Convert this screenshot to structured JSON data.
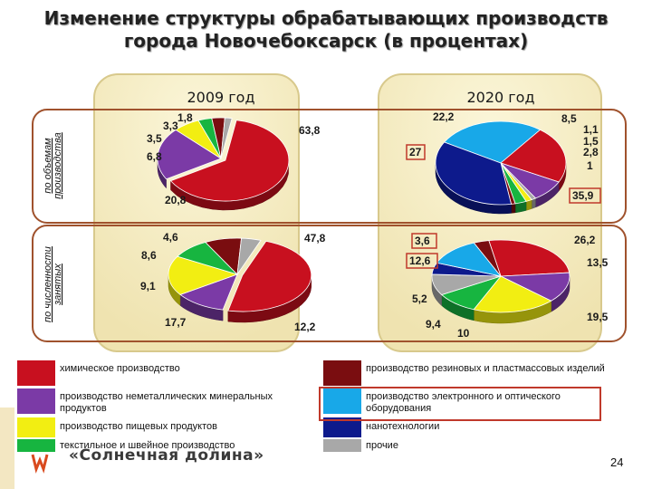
{
  "title_line1": "Изменение структуры обрабатывающих производств",
  "title_line2": "города Новочебоксарск (в процентах)",
  "chart_data": [
    {
      "type": "pie",
      "title": "2009 год",
      "row_label": "по объемам производства",
      "categories": [
        "химическое производство",
        "производство неметаллических минеральных продуктов",
        "производство пищевых продуктов",
        "текстильное и швейное производство",
        "производство резиновых и пластмассовых изделий",
        "прочие"
      ],
      "values": [
        63.8,
        20.8,
        6.8,
        3.5,
        3.3,
        1.8
      ],
      "labels": [
        "63,8",
        "20,8",
        "6,8",
        "3,5",
        "3,3",
        "1,8"
      ]
    },
    {
      "type": "pie",
      "title": "2020 год",
      "row_label": "по объемам производства",
      "categories": [
        "производство электронного и оптического оборудования",
        "химическое производство",
        "производство неметаллических минеральных продуктов",
        "прочие",
        "производство пищевых продуктов",
        "текстильное и швейное производство",
        "производство резиновых и пластмассовых изделий",
        "нанотехнологии"
      ],
      "values": [
        27,
        22.2,
        8.5,
        1.1,
        1.5,
        2.8,
        1,
        35.9
      ],
      "labels": [
        "27",
        "22,2",
        "8,5",
        "1,1",
        "1,5",
        "2,8",
        "1",
        "35,9"
      ]
    },
    {
      "type": "pie",
      "title": "2009 год",
      "row_label": "по численности занятых",
      "categories": [
        "химическое производство",
        "производство неметаллических минеральных продуктов",
        "производство пищевых продуктов",
        "текстильное и швейное производство",
        "производство резиновых и пластмассовых изделий",
        "прочие"
      ],
      "values": [
        47.8,
        12.2,
        17.7,
        9.1,
        8.6,
        4.6
      ],
      "labels": [
        "47,8",
        "12,2",
        "17,7",
        "9,1",
        "8,6",
        "4,6"
      ]
    },
    {
      "type": "pie",
      "title": "2020 год",
      "row_label": "по численности занятых",
      "categories": [
        "химическое производство",
        "производство неметаллических минеральных продуктов",
        "производство пищевых продуктов",
        "текстильное и швейное производство",
        "прочие",
        "нанотехнологии",
        "производство электронного и оптического оборудования",
        "производство резиновых и пластмассовых изделий"
      ],
      "values": [
        26.2,
        13.5,
        19.5,
        10,
        9.4,
        5.2,
        12.6,
        3.6
      ],
      "labels": [
        "26,2",
        "13,5",
        "19,5",
        "10",
        "9,4",
        "5,2",
        "12,6",
        "3,6"
      ]
    }
  ],
  "legend": [
    {
      "label": "химическое производство",
      "color": "#c8101f"
    },
    {
      "label": "производство резиновых и пластмассовых изделий",
      "color": "#7a0d10"
    },
    {
      "label": "производство неметаллических минеральных продуктов",
      "color": "#7b3aa6"
    },
    {
      "label": "производство электронного и оптического оборудования",
      "color": "#18a8e8"
    },
    {
      "label": "производство пищевых продуктов",
      "color": "#f2ee12"
    },
    {
      "label": "нанотехнологии",
      "color": "#0d1a8c"
    },
    {
      "label": "текстильное и швейное производство",
      "color": "#17b540"
    },
    {
      "label": "прочие",
      "color": "#a8a8a8"
    }
  ],
  "footer": {
    "brand": "«Солнечная долина»",
    "page": "24"
  }
}
